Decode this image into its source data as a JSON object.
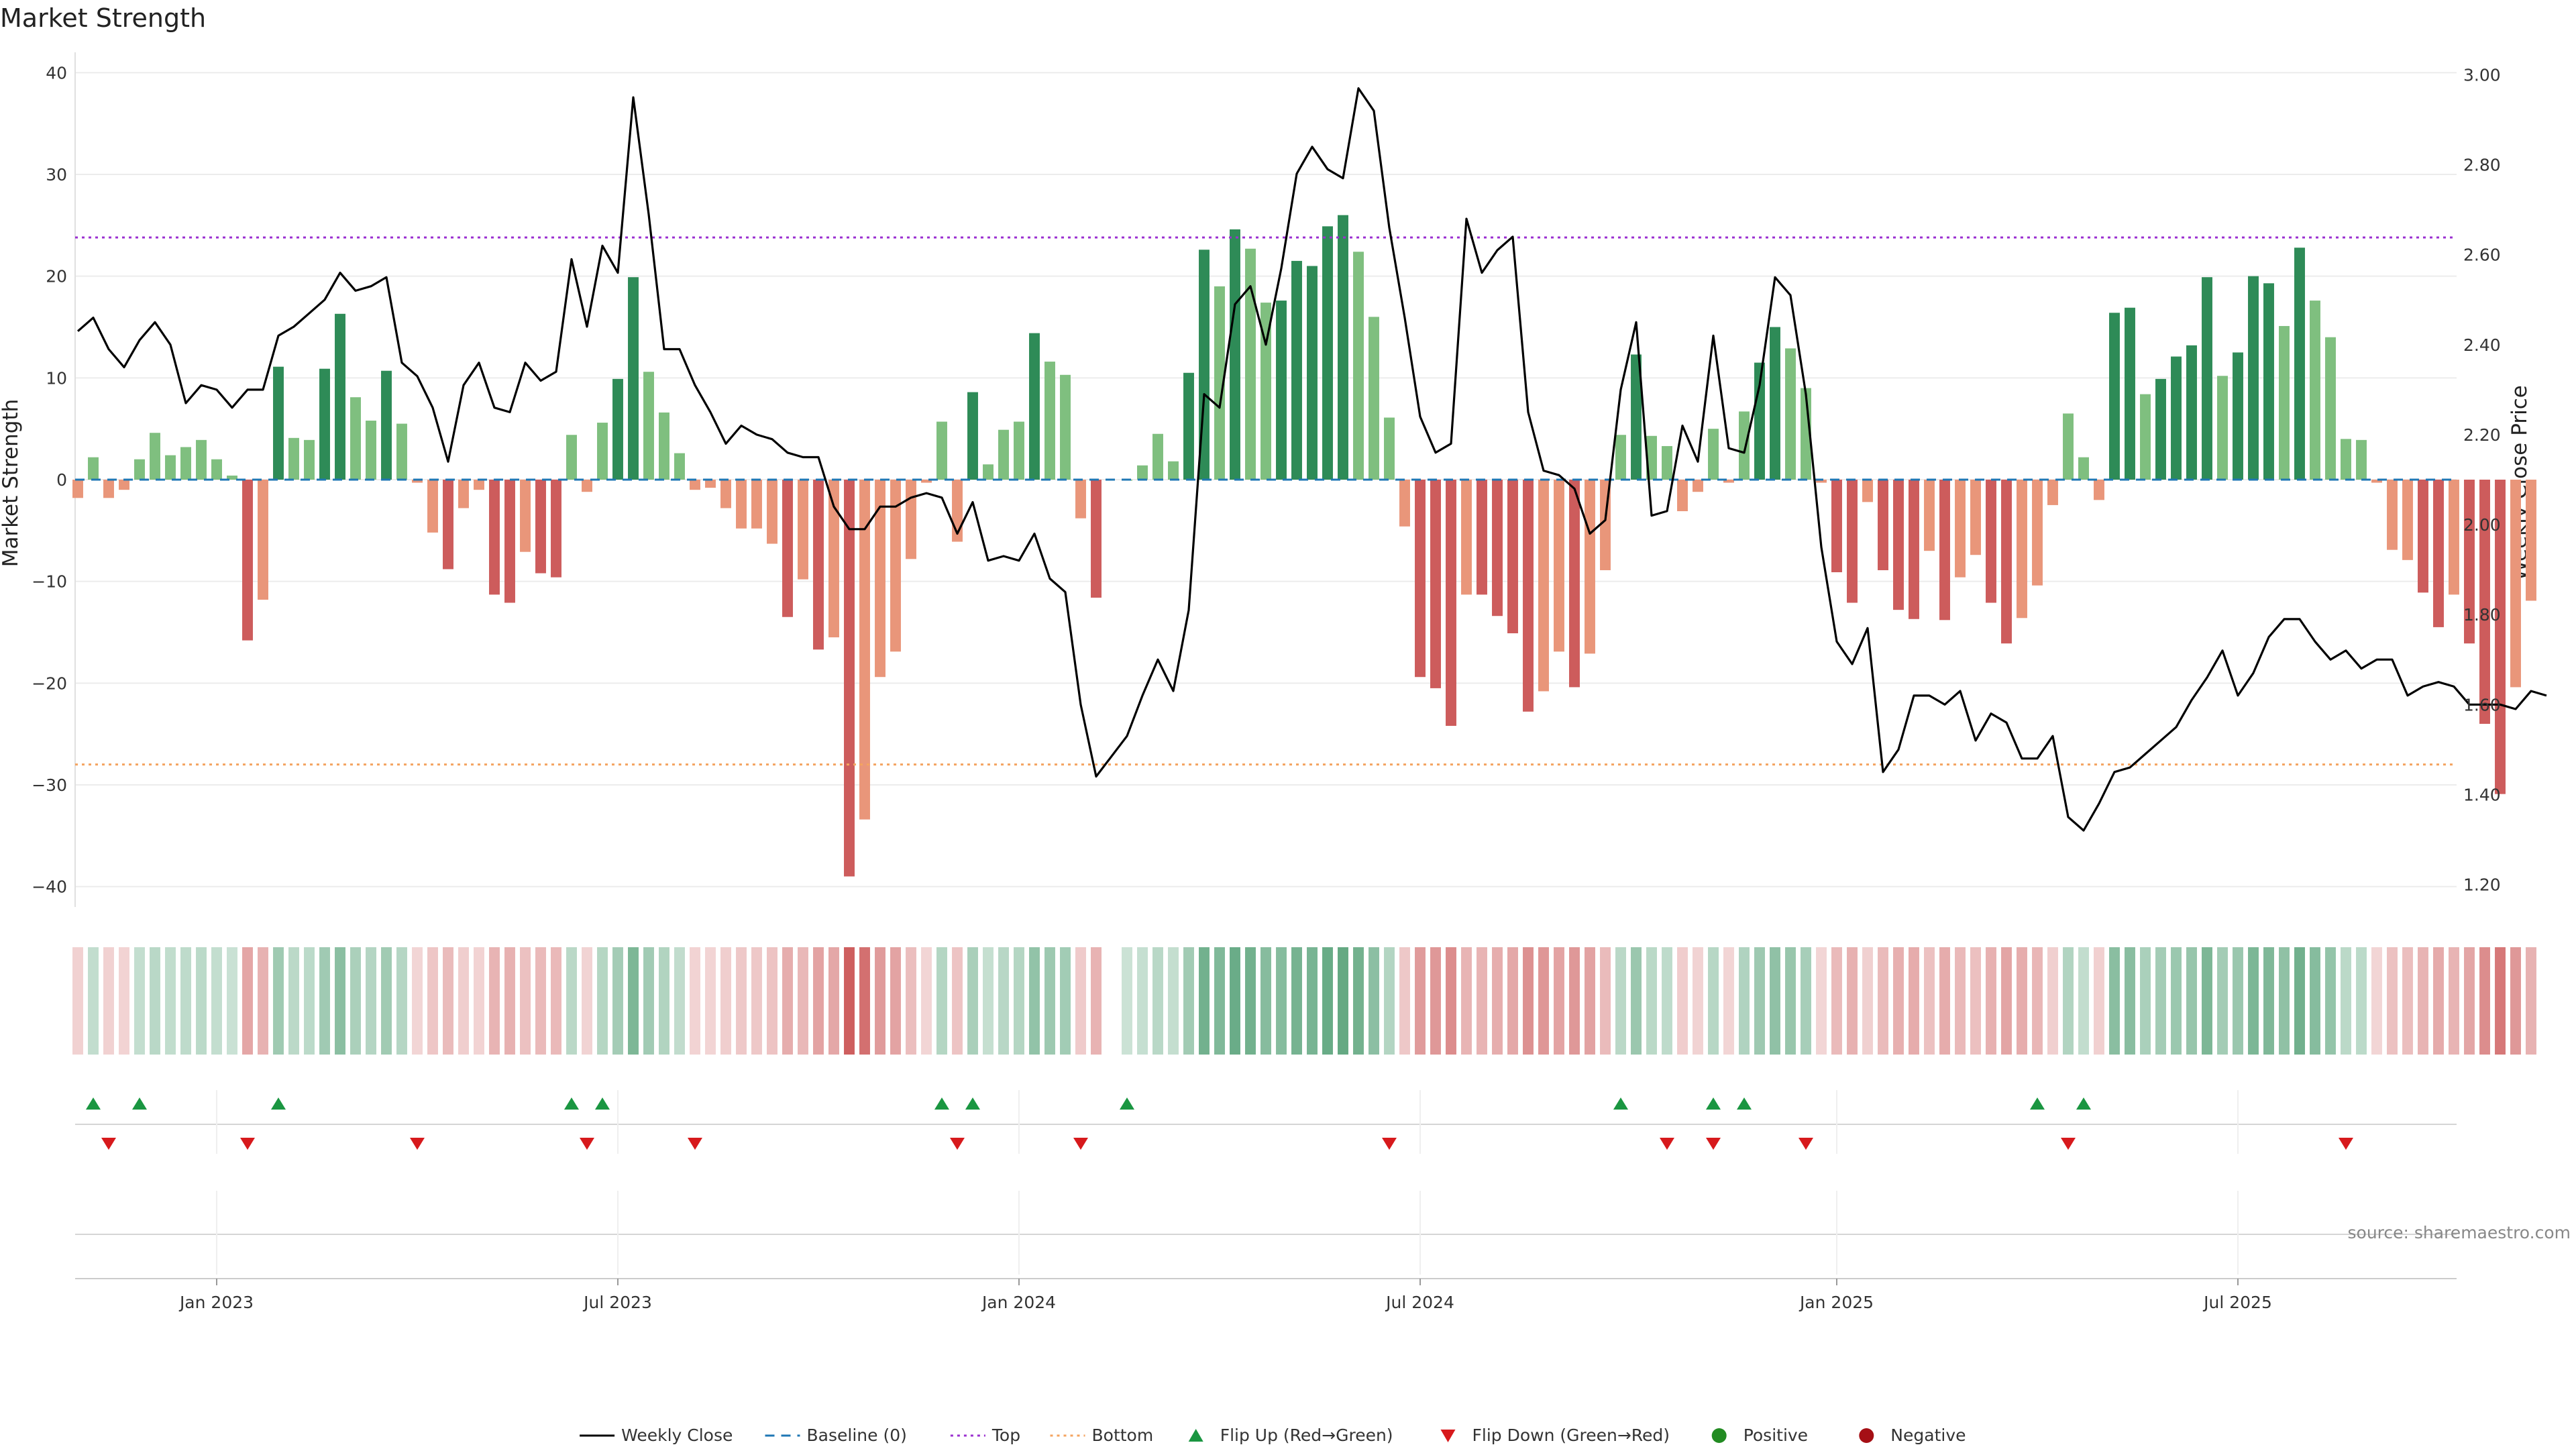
{
  "chart_data": {
    "type": "bar",
    "title": "Market Strength",
    "ylabel": "Market Strength",
    "y2label": "Weekly Close Price",
    "ylim": [
      -42,
      42
    ],
    "y2lim": [
      1.15,
      3.05
    ],
    "yticks": [
      40,
      30,
      20,
      10,
      0,
      -10,
      -20,
      -30,
      -40
    ],
    "yticks_labels": [
      "40",
      "30",
      "20",
      "10",
      "0",
      "−10",
      "−20",
      "−30",
      "−40"
    ],
    "y2ticks": [
      3.0,
      2.8,
      2.6,
      2.4,
      2.2,
      2.0,
      1.8,
      1.6,
      1.4,
      1.2
    ],
    "y2ticks_labels": [
      "3.00",
      "2.80",
      "2.60",
      "2.40",
      "2.20",
      "2.00",
      "1.80",
      "1.60",
      "1.40",
      "1.20"
    ],
    "x_range": [
      "2022-10-31",
      "2025-10-13"
    ],
    "x_tick_dates": [
      "2023-01-02",
      "2023-07-03",
      "2024-01-01",
      "2024-07-01",
      "2025-01-06",
      "2025-07-07"
    ],
    "x_tick_labels": [
      "Jan 2023",
      "Jul 2023",
      "Jan 2024",
      "Jul 2024",
      "Jan 2025",
      "Jul 2025"
    ],
    "top_level": 23.8,
    "bottom_level": -28,
    "grid": true,
    "legend_position": "bottom",
    "colors": {
      "strong_pos": "#2e8b57",
      "weak_pos": "#7fbf7f",
      "strong_neg": "#cd5c5c",
      "weak_neg": "#e9967a",
      "baseline": "#1f77b4",
      "top": "#9b30d0",
      "bottom": "#f4a460",
      "close": "#000000",
      "flip_up": "#1a9641",
      "flip_down": "#d7191c",
      "positive": "#228b22",
      "negative": "#a50f15"
    },
    "series": [
      {
        "name": "Market Strength",
        "start_date": "2022-10-31",
        "missing_week_index": 67,
        "values": [
          -1.8,
          2.2,
          -1.8,
          -1,
          2,
          4.6,
          2.4,
          3.2,
          3.9,
          2,
          0.4,
          -15.8,
          -11.8,
          11.1,
          4.1,
          3.9,
          10.9,
          16.3,
          8.1,
          5.8,
          10.7,
          5.5,
          -0.3,
          -5.2,
          -8.8,
          -2.8,
          -1,
          -11.3,
          -12.1,
          -7.1,
          -9.2,
          -9.6,
          4.4,
          -1.2,
          5.6,
          9.9,
          19.9,
          10.6,
          6.6,
          2.6,
          -1,
          -0.8,
          -2.8,
          -4.8,
          -4.8,
          -6.3,
          -13.5,
          -9.8,
          -16.7,
          -15.5,
          -39,
          -33.4,
          -19.4,
          -16.9,
          -7.8,
          -0.3,
          5.7,
          -6.1,
          8.6,
          1.5,
          4.9,
          5.7,
          14.4,
          11.6,
          10.3,
          -3.8,
          -11.6,
          0,
          1.4,
          4.5,
          1.8,
          10.5,
          22.6,
          19,
          24.6,
          22.7,
          17.4,
          17.6,
          21.5,
          21,
          24.9,
          26,
          22.4,
          16,
          6.1,
          -4.6,
          -19.4,
          -20.5,
          -24.2,
          -11.3,
          -11.3,
          -13.4,
          -15.1,
          -22.8,
          -20.8,
          -16.9,
          -20.4,
          -17.1,
          -8.9,
          4.4,
          12.3,
          4.3,
          3.3,
          -3.1,
          -1.2,
          5,
          -0.3,
          6.7,
          11.5,
          15,
          12.9,
          9,
          -0.3,
          -9.1,
          -12.1,
          -2.2,
          -8.9,
          -12.8,
          -13.7,
          -7,
          -13.8,
          -9.6,
          -7.4,
          -12.1,
          -16.1,
          -13.6,
          -10.4,
          -2.5,
          6.5,
          2.2,
          -2,
          16.4,
          16.9,
          8.4,
          9.9,
          12.1,
          13.2,
          19.9,
          10.2,
          12.5,
          20,
          19.3,
          15.1,
          22.8,
          17.6,
          14,
          4,
          3.9,
          -0.3,
          -6.9,
          -7.9,
          -11.1,
          -14.5,
          -11.3,
          -16.1,
          -24,
          -30.9,
          -20.4,
          -11.9
        ]
      },
      {
        "name": "Weekly Close",
        "values": [
          2.43,
          2.46,
          2.39,
          2.35,
          2.41,
          2.45,
          2.4,
          2.27,
          2.31,
          2.3,
          2.26,
          2.3,
          2.3,
          2.42,
          2.44,
          2.47,
          2.5,
          2.56,
          2.52,
          2.53,
          2.55,
          2.36,
          2.33,
          2.26,
          2.14,
          2.31,
          2.36,
          2.26,
          2.25,
          2.36,
          2.32,
          2.34,
          2.59,
          2.44,
          2.62,
          2.56,
          2.95,
          2.69,
          2.39,
          2.39,
          2.31,
          2.25,
          2.18,
          2.22,
          2.2,
          2.19,
          2.16,
          2.15,
          2.15,
          2.04,
          1.99,
          1.99,
          2.04,
          2.04,
          2.06,
          2.07,
          2.06,
          1.98,
          2.05,
          1.92,
          1.93,
          1.92,
          1.98,
          1.88,
          1.85,
          1.6,
          1.44,
          1.53,
          1.62,
          1.7,
          1.63,
          1.81,
          2.29,
          2.26,
          2.49,
          2.53,
          2.4,
          2.57,
          2.78,
          2.84,
          2.79,
          2.77,
          2.97,
          2.92,
          2.66,
          2.46,
          2.24,
          2.16,
          2.18,
          2.68,
          2.56,
          2.61,
          2.64,
          2.25,
          2.12,
          2.11,
          2.08,
          1.98,
          2.01,
          2.3,
          2.45,
          2.02,
          2.03,
          2.22,
          2.14,
          2.42,
          2.17,
          2.16,
          2.31,
          2.55,
          2.51,
          2.29,
          1.95,
          1.74,
          1.69,
          1.77,
          1.45,
          1.5,
          1.62,
          1.62,
          1.6,
          1.63,
          1.52,
          1.58,
          1.56,
          1.48,
          1.48,
          1.53,
          1.35,
          1.32,
          1.38,
          1.45,
          1.46,
          1.49,
          1.52,
          1.55,
          1.61,
          1.66,
          1.72,
          1.62,
          1.67,
          1.75,
          1.79,
          1.79,
          1.74,
          1.7,
          1.72,
          1.68,
          1.7,
          1.7,
          1.62,
          1.64,
          1.65,
          1.64,
          1.6,
          1.6,
          1.6,
          1.59,
          1.63,
          1.62
        ]
      }
    ],
    "flip_up_week_indices": [
      1,
      4,
      13,
      32,
      34,
      56,
      58,
      68,
      100,
      106,
      108,
      127,
      130
    ],
    "flip_down_week_indices": [
      2,
      11,
      22,
      33,
      40,
      57,
      65,
      85,
      103,
      106,
      112,
      129,
      147
    ],
    "source": "source: sharemaestro.com",
    "legend": [
      {
        "label": "Weekly Close",
        "kind": "line-solid",
        "color": "#000000"
      },
      {
        "label": "Baseline (0)",
        "kind": "line-dashed",
        "color": "#1f77b4"
      },
      {
        "label": "Top",
        "kind": "line-dotted",
        "color": "#9b30d0"
      },
      {
        "label": "Bottom",
        "kind": "line-dotted",
        "color": "#f4a460"
      },
      {
        "label": "Flip Up (Red→Green)",
        "kind": "tri-up",
        "color": "#1a9641"
      },
      {
        "label": "Flip Down (Green→Red)",
        "kind": "tri-down",
        "color": "#d7191c"
      },
      {
        "label": "Positive",
        "kind": "dot",
        "color": "#228b22"
      },
      {
        "label": "Negative",
        "kind": "dot",
        "color": "#a50f15"
      }
    ]
  }
}
